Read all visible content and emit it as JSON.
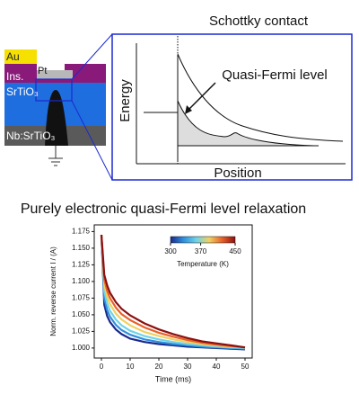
{
  "diagram": {
    "device_labels": {
      "au": "Au",
      "ins": "Ins.",
      "pt": "Pt",
      "srtio3": "SrTiO₃",
      "nb": "Nb:SrTiO₃"
    },
    "panel": {
      "title": "Schottky contact",
      "ylabel": "Energy",
      "xlabel": "Position",
      "annotation": "Quasi-Fermi level"
    }
  },
  "chart_data": {
    "type": "line",
    "title": "Purely electronic quasi-Fermi level relaxation",
    "xlabel": "Time (ms)",
    "ylabel": "Norm. reverse current I / (A)",
    "x": [
      0,
      1,
      2,
      3,
      5,
      7,
      10,
      15,
      20,
      25,
      30,
      35,
      40,
      45,
      50
    ],
    "series": [
      {
        "color": "#1a2a8c",
        "values": [
          1.17,
          1.065,
          1.048,
          1.039,
          1.028,
          1.021,
          1.014,
          1.009,
          1.006,
          1.004,
          1.002,
          1.001,
          1.0,
          0.999,
          0.998
        ]
      },
      {
        "color": "#2f8fdc",
        "values": [
          1.17,
          1.075,
          1.057,
          1.047,
          1.035,
          1.027,
          1.02,
          1.013,
          1.009,
          1.006,
          1.004,
          1.002,
          1.001,
          1.0,
          0.999
        ]
      },
      {
        "color": "#6fd3e8",
        "values": [
          1.17,
          1.085,
          1.067,
          1.056,
          1.043,
          1.034,
          1.026,
          1.018,
          1.013,
          1.009,
          1.006,
          1.004,
          1.002,
          1.001,
          1.0
        ]
      },
      {
        "color": "#f0d060",
        "values": [
          1.17,
          1.095,
          1.077,
          1.066,
          1.052,
          1.043,
          1.034,
          1.024,
          1.018,
          1.013,
          1.009,
          1.006,
          1.004,
          1.002,
          1.001
        ]
      },
      {
        "color": "#e8602a",
        "values": [
          1.17,
          1.103,
          1.086,
          1.075,
          1.061,
          1.051,
          1.042,
          1.031,
          1.023,
          1.017,
          1.012,
          1.008,
          1.005,
          1.003,
          1.001
        ]
      },
      {
        "color": "#8c1010",
        "values": [
          1.17,
          1.11,
          1.094,
          1.083,
          1.069,
          1.059,
          1.049,
          1.037,
          1.028,
          1.021,
          1.015,
          1.01,
          1.007,
          1.004,
          1.001
        ]
      }
    ],
    "xlim": [
      -2.5,
      52.5
    ],
    "ylim": [
      0.985,
      1.185
    ],
    "xticks": [
      0,
      10,
      20,
      30,
      40,
      50
    ],
    "yticks": [
      {
        "value": 1,
        "label": "1.000"
      },
      1.025,
      {
        "value": 1.05,
        "label": "1.050"
      },
      1.075,
      {
        "value": 1.1,
        "label": "1.100"
      },
      1.125,
      {
        "value": 1.15,
        "label": "1.150"
      },
      1.175
    ],
    "colorbar": {
      "label": "Temperature (K)",
      "range": [
        300,
        450
      ],
      "ticks": [
        300,
        370,
        450
      ]
    }
  }
}
